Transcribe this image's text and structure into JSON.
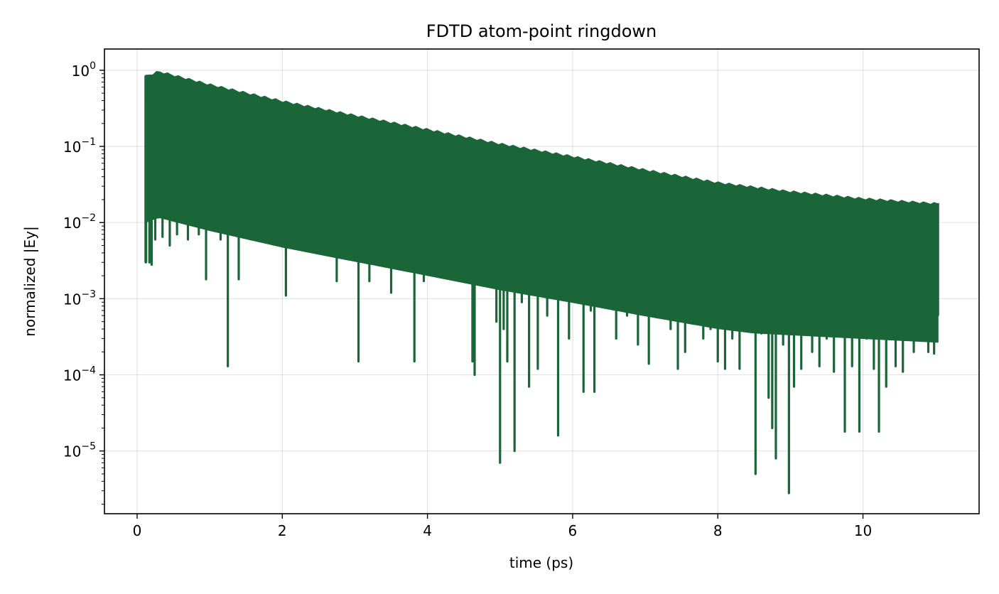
{
  "chart_data": {
    "type": "line",
    "title": "FDTD atom-point ringdown",
    "xlabel": "time (ps)",
    "ylabel": "normalized |Ey|",
    "xlim": [
      -0.45,
      11.6
    ],
    "ylim": [
      1.5e-06,
      1.9
    ],
    "yscale": "log",
    "grid": true,
    "legend": "none",
    "series_color": "#1b6638",
    "x_ticks": [
      {
        "value": 0,
        "label": "0"
      },
      {
        "value": 2,
        "label": "2"
      },
      {
        "value": 4,
        "label": "4"
      },
      {
        "value": 6,
        "label": "6"
      },
      {
        "value": 8,
        "label": "8"
      },
      {
        "value": 10,
        "label": "10"
      }
    ],
    "y_ticks": [
      {
        "exp": 0,
        "base": "10",
        "power": "0"
      },
      {
        "exp": -1,
        "base": "10",
        "power": "−1"
      },
      {
        "exp": -2,
        "base": "10",
        "power": "−2"
      },
      {
        "exp": -3,
        "base": "10",
        "power": "−3"
      },
      {
        "exp": -4,
        "base": "10",
        "power": "−4"
      },
      {
        "exp": -5,
        "base": "10",
        "power": "−5"
      }
    ],
    "series": [
      {
        "t_start": 0.12,
        "t_end": 11.03,
        "envelope": [
          {
            "x": 0.12,
            "y": 0.85
          },
          {
            "x": 0.3,
            "y": 0.98
          },
          {
            "x": 1.0,
            "y": 0.66
          },
          {
            "x": 2.0,
            "y": 0.4
          },
          {
            "x": 3.0,
            "y": 0.26
          },
          {
            "x": 4.0,
            "y": 0.17
          },
          {
            "x": 5.0,
            "y": 0.11
          },
          {
            "x": 6.0,
            "y": 0.075
          },
          {
            "x": 7.0,
            "y": 0.05
          },
          {
            "x": 8.0,
            "y": 0.034
          },
          {
            "x": 9.0,
            "y": 0.026
          },
          {
            "x": 10.0,
            "y": 0.021
          },
          {
            "x": 11.03,
            "y": 0.018
          }
        ],
        "dips": [
          {
            "x": 0.12,
            "y": 0.003
          },
          {
            "x": 0.17,
            "y": 0.003
          },
          {
            "x": 0.2,
            "y": 0.0028
          },
          {
            "x": 0.25,
            "y": 0.006
          },
          {
            "x": 0.35,
            "y": 0.0065
          },
          {
            "x": 0.45,
            "y": 0.005
          },
          {
            "x": 0.55,
            "y": 0.007
          },
          {
            "x": 0.7,
            "y": 0.006
          },
          {
            "x": 0.85,
            "y": 0.007
          },
          {
            "x": 0.95,
            "y": 0.0018
          },
          {
            "x": 1.05,
            "y": 0.008
          },
          {
            "x": 1.15,
            "y": 0.006
          },
          {
            "x": 1.25,
            "y": 0.00013
          },
          {
            "x": 1.4,
            "y": 0.0018
          },
          {
            "x": 1.55,
            "y": 0.008
          },
          {
            "x": 1.65,
            "y": 0.007
          },
          {
            "x": 1.8,
            "y": 0.006
          },
          {
            "x": 1.95,
            "y": 0.007
          },
          {
            "x": 2.05,
            "y": 0.0011
          },
          {
            "x": 2.2,
            "y": 0.008
          },
          {
            "x": 2.35,
            "y": 0.006
          },
          {
            "x": 2.5,
            "y": 0.004
          },
          {
            "x": 2.65,
            "y": 0.007
          },
          {
            "x": 2.75,
            "y": 0.0017
          },
          {
            "x": 2.9,
            "y": 0.005
          },
          {
            "x": 3.05,
            "y": 0.00015
          },
          {
            "x": 3.2,
            "y": 0.0017
          },
          {
            "x": 3.35,
            "y": 0.003
          },
          {
            "x": 3.5,
            "y": 0.0012
          },
          {
            "x": 3.65,
            "y": 0.005
          },
          {
            "x": 3.82,
            "y": 0.00015
          },
          {
            "x": 3.95,
            "y": 0.0017
          },
          {
            "x": 4.1,
            "y": 0.004
          },
          {
            "x": 4.3,
            "y": 0.0019
          },
          {
            "x": 4.45,
            "y": 0.003
          },
          {
            "x": 4.62,
            "y": 0.00015
          },
          {
            "x": 4.65,
            "y": 0.0001
          },
          {
            "x": 4.8,
            "y": 0.002
          },
          {
            "x": 4.95,
            "y": 0.0005
          },
          {
            "x": 5.0,
            "y": 7e-06
          },
          {
            "x": 5.05,
            "y": 0.0004
          },
          {
            "x": 5.1,
            "y": 0.00015
          },
          {
            "x": 5.2,
            "y": 1e-05
          },
          {
            "x": 5.3,
            "y": 0.0009
          },
          {
            "x": 5.4,
            "y": 7e-05
          },
          {
            "x": 5.52,
            "y": 0.00012
          },
          {
            "x": 5.65,
            "y": 0.0006
          },
          {
            "x": 5.8,
            "y": 1.6e-05
          },
          {
            "x": 5.95,
            "y": 0.0003
          },
          {
            "x": 6.05,
            "y": 0.0009
          },
          {
            "x": 6.15,
            "y": 6e-05
          },
          {
            "x": 6.25,
            "y": 0.0007
          },
          {
            "x": 6.3,
            "y": 6e-05
          },
          {
            "x": 6.45,
            "y": 0.0008
          },
          {
            "x": 6.6,
            "y": 0.0003
          },
          {
            "x": 6.75,
            "y": 0.0006
          },
          {
            "x": 6.9,
            "y": 0.00025
          },
          {
            "x": 7.05,
            "y": 0.00014
          },
          {
            "x": 7.2,
            "y": 0.0007
          },
          {
            "x": 7.35,
            "y": 0.0004
          },
          {
            "x": 7.45,
            "y": 0.00012
          },
          {
            "x": 7.55,
            "y": 0.0002
          },
          {
            "x": 7.7,
            "y": 0.0005
          },
          {
            "x": 7.8,
            "y": 0.0003
          },
          {
            "x": 7.9,
            "y": 0.0004
          },
          {
            "x": 8.0,
            "y": 0.00015
          },
          {
            "x": 8.1,
            "y": 0.00012
          },
          {
            "x": 8.2,
            "y": 0.0003
          },
          {
            "x": 8.3,
            "y": 0.00012
          },
          {
            "x": 8.4,
            "y": 0.0004
          },
          {
            "x": 8.52,
            "y": 5e-06
          },
          {
            "x": 8.6,
            "y": 0.00035
          },
          {
            "x": 8.7,
            "y": 5e-05
          },
          {
            "x": 8.75,
            "y": 2e-05
          },
          {
            "x": 8.8,
            "y": 8e-06
          },
          {
            "x": 8.9,
            "y": 0.00025
          },
          {
            "x": 8.98,
            "y": 2.8e-06
          },
          {
            "x": 9.05,
            "y": 7e-05
          },
          {
            "x": 9.15,
            "y": 0.00012
          },
          {
            "x": 9.3,
            "y": 0.0002
          },
          {
            "x": 9.4,
            "y": 0.00013
          },
          {
            "x": 9.5,
            "y": 0.0003
          },
          {
            "x": 9.6,
            "y": 0.00011
          },
          {
            "x": 9.75,
            "y": 1.8e-05
          },
          {
            "x": 9.85,
            "y": 0.00013
          },
          {
            "x": 9.95,
            "y": 1.8e-05
          },
          {
            "x": 10.05,
            "y": 0.0003
          },
          {
            "x": 10.15,
            "y": 0.00012
          },
          {
            "x": 10.22,
            "y": 1.8e-05
          },
          {
            "x": 10.32,
            "y": 7e-05
          },
          {
            "x": 10.45,
            "y": 0.00013
          },
          {
            "x": 10.55,
            "y": 0.00011
          },
          {
            "x": 10.62,
            "y": 0.0003
          },
          {
            "x": 10.7,
            "y": 0.0002
          },
          {
            "x": 10.8,
            "y": 0.0003
          },
          {
            "x": 10.9,
            "y": 0.0002
          },
          {
            "x": 10.98,
            "y": 0.00019
          },
          {
            "x": 11.03,
            "y": 0.0006
          }
        ]
      }
    ]
  }
}
